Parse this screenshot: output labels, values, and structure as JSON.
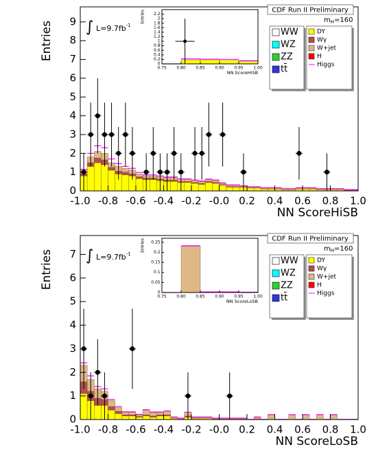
{
  "chart_data": [
    {
      "type": "stacked_histogram",
      "title": "CDF Run II Preliminary",
      "mass_label": {
        "main": "m",
        "sub": "H",
        "rest": "=160"
      },
      "lumi": {
        "symbol": "∫",
        "text": "L=9.7fb",
        "sup": "-1"
      },
      "x_label": "NN ScoreHiSB",
      "y_label": "Entries",
      "xlim": [
        -1,
        1
      ],
      "ylim": [
        0,
        9.8
      ],
      "xticks": [
        {
          "value": -1,
          "label": "-1.0"
        },
        -0.8,
        -0.6,
        -0.4,
        -0.2,
        {
          "value": 0,
          "label": "-0.0"
        },
        0.2,
        0.4,
        0.6,
        0.8,
        {
          "value": 1,
          "label": "1.0"
        }
      ],
      "yticks": [
        0,
        1,
        2,
        3,
        4,
        5,
        6,
        7,
        8,
        9
      ],
      "bins": [
        -1,
        -0.95,
        -0.9,
        -0.85,
        -0.8,
        -0.75,
        -0.7,
        -0.65,
        -0.6,
        -0.55,
        -0.5,
        -0.45,
        -0.4,
        -0.35,
        -0.3,
        -0.25,
        -0.2,
        -0.15,
        -0.1,
        -0.05,
        0,
        0.05,
        0.1,
        0.15,
        0.2,
        0.25,
        0.3,
        0.35,
        0.4,
        0.45,
        0.5,
        0.55,
        0.6,
        0.65,
        0.7,
        0.75,
        0.8,
        0.85,
        0.9,
        0.95,
        1
      ],
      "series": [
        {
          "name": "WW",
          "color": "#ffffff"
        },
        {
          "name": "WZ",
          "color": "#00ffff"
        },
        {
          "name": "ZZ",
          "color": "#33cc33"
        },
        {
          "name": "tt̄",
          "color": "#3333dd"
        },
        {
          "name": "DY",
          "color": "#ffff00",
          "values": [
            0.8,
            1.3,
            1.5,
            1.4,
            1.1,
            0.9,
            0.85,
            0.8,
            0.65,
            0.6,
            0.6,
            0.55,
            0.5,
            0.5,
            0.45,
            0.45,
            0.4,
            0.35,
            0.45,
            0.4,
            0.3,
            0.2,
            0.2,
            0.2,
            0.15,
            0.15,
            0.1,
            0.1,
            0.1,
            0.07,
            0.07,
            0.1,
            0.1,
            0.1,
            0.07,
            0.07,
            0.07,
            0.07,
            0.03,
            0.03
          ]
        },
        {
          "name": "Wγ",
          "color": "#b05050",
          "values": [
            0.1,
            0.2,
            0.25,
            0.25,
            0.15,
            0.15,
            0.15,
            0.1,
            0.1,
            0.08,
            0.08,
            0.08,
            0.08,
            0.08,
            0.05,
            0.05,
            0.05,
            0.05,
            0.05,
            0.05,
            0.03,
            0.03,
            0.03,
            0.01,
            0.01,
            0.01,
            0.01,
            0.01,
            0.01,
            0,
            0,
            0.01,
            0.01,
            0.01,
            0,
            0,
            0,
            0,
            0,
            0
          ]
        },
        {
          "name": "W+jet",
          "color": "#deb887",
          "values": [
            0.2,
            0.3,
            0.35,
            0.35,
            0.25,
            0.25,
            0.2,
            0.2,
            0.15,
            0.12,
            0.12,
            0.12,
            0.12,
            0.12,
            0.1,
            0.1,
            0.1,
            0.1,
            0.1,
            0.1,
            0.07,
            0.07,
            0.07,
            0.04,
            0.04,
            0.04,
            0.04,
            0.04,
            0.04,
            0.03,
            0.03,
            0.04,
            0.04,
            0.04,
            0.03,
            0.03,
            0.03,
            0.03,
            0.02,
            0.02
          ]
        },
        {
          "name": "H",
          "color": "#ff0000"
        },
        {
          "name": "Higgs",
          "color": "#ff00ff",
          "style": "line",
          "values": [
            0.05,
            0.2,
            0.3,
            0.3,
            0.2,
            0.15,
            0.1,
            0.1,
            0.08,
            0.05,
            0.05,
            0.05,
            0.04,
            0.04,
            0.04,
            0.04,
            0.03,
            0.03,
            0.03,
            0.03,
            0.03,
            0.02,
            0.02,
            0.02,
            0.02,
            0.02,
            0.02,
            0.02,
            0.02,
            0.02,
            0.02,
            0.02,
            0.02,
            0.02,
            0.02,
            0.02,
            0.02,
            0.02,
            0.02,
            0.02
          ]
        }
      ],
      "points": {
        "x": [
          -0.975,
          -0.925,
          -0.875,
          -0.825,
          -0.775,
          -0.725,
          -0.675,
          -0.625,
          -0.525,
          -0.475,
          -0.425,
          -0.375,
          -0.325,
          -0.275,
          -0.175,
          -0.125,
          -0.075,
          0.025,
          0.175,
          0.575,
          0.775
        ],
        "values": [
          1,
          3,
          4,
          3,
          3,
          2,
          3,
          2,
          1,
          2,
          1,
          1,
          2,
          1,
          2,
          2,
          3,
          3,
          1,
          2,
          1
        ],
        "errors": [
          1,
          1.7,
          2,
          1.7,
          1.7,
          1.4,
          1.7,
          1.4,
          1,
          1.4,
          1,
          1,
          1.4,
          1,
          1.4,
          1.4,
          1.7,
          1.7,
          1,
          1.4,
          1
        ]
      },
      "inset": {
        "x_label": "NN ScoreHiSB",
        "y_label": "Entries",
        "xlim": [
          0.75,
          1
        ],
        "ylim": [
          0,
          2.4
        ],
        "xticks": [
          0.75,
          {
            "value": 0.8,
            "label": "0.80"
          },
          0.85,
          {
            "value": 0.9,
            "label": "0.90"
          },
          0.95,
          {
            "value": 1,
            "label": "1.00"
          }
        ],
        "yticks": [
          0,
          0.2,
          0.4,
          0.6,
          0.8,
          1,
          1.2,
          1.4,
          1.6,
          1.8,
          2,
          2.2
        ],
        "bins": [
          0.75,
          0.8,
          0.85,
          0.9,
          0.95,
          1
        ],
        "series": [
          {
            "name": "DY",
            "color": "#ffff00",
            "values": [
              0,
              0.18,
              0.17,
              0.15,
              0.1
            ]
          },
          {
            "name": "Higgs",
            "color": "#ff00ff",
            "style": "line",
            "values": [
              0,
              0.04,
              0.04,
              0.05,
              0.04
            ]
          }
        ],
        "points": {
          "x": [
            0.81
          ],
          "values": [
            1
          ],
          "errors": [
            1
          ]
        }
      }
    },
    {
      "type": "stacked_histogram",
      "title": "CDF Run II Preliminary",
      "mass_label": {
        "main": "m",
        "sub": "H",
        "rest": "=160"
      },
      "lumi": {
        "symbol": "∫",
        "text": "L=9.7fb",
        "sup": "-1"
      },
      "x_label": "NN ScoreLoSB",
      "y_label": "Entries",
      "xlim": [
        -1,
        1
      ],
      "ylim": [
        0,
        7.8
      ],
      "xticks": [
        {
          "value": -1,
          "label": "-1.0"
        },
        -0.8,
        -0.6,
        -0.4,
        -0.2,
        {
          "value": 0,
          "label": "-0.0"
        },
        0.2,
        0.4,
        0.6,
        0.8,
        {
          "value": 1,
          "label": "1.0"
        }
      ],
      "yticks": [
        0,
        1,
        2,
        3,
        4,
        5,
        6,
        7
      ],
      "bins": [
        -1,
        -0.95,
        -0.9,
        -0.85,
        -0.8,
        -0.75,
        -0.7,
        -0.65,
        -0.6,
        -0.55,
        -0.5,
        -0.45,
        -0.4,
        -0.35,
        -0.3,
        -0.25,
        -0.2,
        -0.15,
        -0.1,
        -0.05,
        0,
        0.05,
        0.1,
        0.15,
        0.2,
        0.25,
        0.3,
        0.35,
        0.4,
        0.45,
        0.5,
        0.55,
        0.6,
        0.65,
        0.7,
        0.75,
        0.8,
        0.85,
        0.9,
        0.95,
        1
      ],
      "series": [
        {
          "name": "WW",
          "color": "#ffffff"
        },
        {
          "name": "WZ",
          "color": "#00ffff"
        },
        {
          "name": "ZZ",
          "color": "#33cc33"
        },
        {
          "name": "tt̄",
          "color": "#3333dd"
        },
        {
          "name": "DY",
          "color": "#ffff00",
          "values": [
            1.1,
            0.8,
            0.6,
            0.6,
            0.4,
            0.25,
            0.15,
            0.15,
            0.1,
            0.15,
            0.1,
            0.15,
            0.15,
            0.05,
            0.03,
            0.1,
            0.05,
            0.05,
            0.05,
            0.03,
            0.03,
            0.03,
            0.03,
            0.03,
            0,
            0.03,
            0,
            0,
            0,
            0,
            0,
            0,
            0,
            0,
            0,
            0,
            0,
            0,
            0,
            0
          ]
        },
        {
          "name": "Wγ",
          "color": "#b05050",
          "values": [
            0.5,
            0.4,
            0.3,
            0.25,
            0.15,
            0.1,
            0.05,
            0.05,
            0.03,
            0.05,
            0.05,
            0.05,
            0.05,
            0.01,
            0,
            0.05,
            0.01,
            0.01,
            0.01,
            0,
            0,
            0,
            0,
            0,
            0,
            0,
            0,
            0,
            0,
            0,
            0,
            0,
            0,
            0,
            0,
            0,
            0,
            0,
            0,
            0
          ]
        },
        {
          "name": "W+jet",
          "color": "#deb887",
          "values": [
            0.7,
            0.5,
            0.4,
            0.35,
            0.25,
            0.15,
            0.1,
            0.1,
            0.07,
            0.2,
            0.15,
            0.1,
            0.15,
            0.04,
            0.02,
            0.15,
            0.04,
            0.04,
            0.04,
            0.02,
            0.02,
            0.02,
            0.02,
            0.02,
            0,
            0.07,
            0,
            0.2,
            0,
            0,
            0.2,
            0,
            0.2,
            0,
            0.2,
            0,
            0.2,
            0,
            0,
            0
          ]
        },
        {
          "name": "H",
          "color": "#ff0000"
        },
        {
          "name": "Higgs",
          "color": "#ff00ff",
          "style": "line",
          "values": [
            0.1,
            0.15,
            0.1,
            0.1,
            0.05,
            0.05,
            0.03,
            0.03,
            0.02,
            0.02,
            0.02,
            0.02,
            0.02,
            0.01,
            0.01,
            0.01,
            0.01,
            0.01,
            0.01,
            0.01,
            0.01,
            0.01,
            0.01,
            0.01,
            0.01,
            0.01,
            0.01,
            0.01,
            0.01,
            0.01,
            0.01,
            0.01,
            0.01,
            0.01,
            0.01,
            0.01,
            0.01,
            0.01,
            0.01,
            0.01
          ]
        }
      ],
      "points": {
        "x": [
          -0.975,
          -0.925,
          -0.875,
          -0.825,
          -0.625,
          -0.225,
          0.075
        ],
        "values": [
          3,
          1,
          2,
          1,
          3,
          1,
          1
        ],
        "errors": [
          1.7,
          1,
          1.4,
          1,
          1.7,
          1,
          1
        ]
      },
      "inset": {
        "x_label": "NN ScoreLoSB",
        "y_label": "Entries",
        "xlim": [
          0.75,
          1
        ],
        "ylim": [
          0,
          0.27
        ],
        "xticks": [
          0.75,
          {
            "value": 0.8,
            "label": "0.80"
          },
          0.85,
          {
            "value": 0.9,
            "label": "0.90"
          },
          0.95,
          {
            "value": 1,
            "label": "1.00"
          }
        ],
        "yticks": [
          0,
          0.05,
          0.1,
          0.15,
          0.2,
          0.25
        ],
        "bins": [
          0.75,
          0.8,
          0.85,
          0.9,
          0.95,
          1
        ],
        "series": [
          {
            "name": "W+jet",
            "color": "#deb887",
            "values": [
              0,
              0.23,
              0,
              0,
              0
            ]
          },
          {
            "name": "Higgs",
            "color": "#ff00ff",
            "style": "line",
            "values": [
              0,
              0.003,
              0.003,
              0.003,
              0.002
            ]
          }
        ]
      }
    }
  ]
}
